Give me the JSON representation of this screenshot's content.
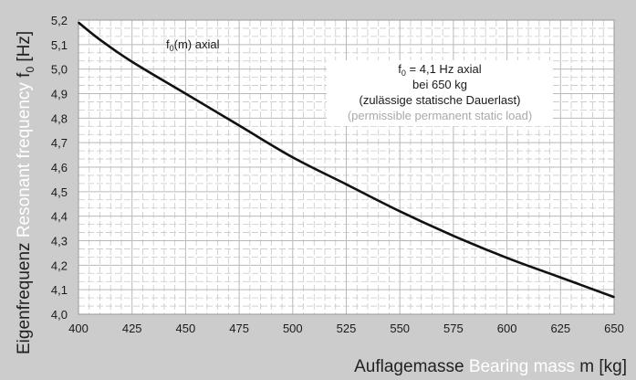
{
  "chart_data": {
    "type": "line",
    "x_label": {
      "de": "Auflagemasse",
      "en": "Bearing mass",
      "symbol": "m [kg]"
    },
    "y_label": {
      "de": "Eigenfrequenz",
      "en": "Resonant frequency",
      "symbol": "f",
      "sub": "0",
      "unit": "[Hz]"
    },
    "xlim": [
      400,
      650
    ],
    "ylim": [
      4.0,
      5.2
    ],
    "x_ticks": [
      "400",
      "425",
      "450",
      "475",
      "500",
      "525",
      "550",
      "575",
      "600",
      "625",
      "650"
    ],
    "y_ticks": [
      "4,0",
      "4,1",
      "4,2",
      "4,3",
      "4,4",
      "4,5",
      "4,6",
      "4,7",
      "4,8",
      "4,9",
      "5,0",
      "5,1",
      "5,2"
    ],
    "grid": true,
    "colors": {
      "background": "#cdcccc",
      "plot_area": "#ffffff",
      "grid": "#c8c8c8",
      "curve": "#111111",
      "english_text": "#ffffff",
      "muted_text": "#a9a9a9"
    },
    "series": [
      {
        "label": {
          "main": "f",
          "sub": "0",
          "rest": "(m) axial"
        },
        "x": [
          400,
          410,
          425,
          450,
          475,
          500,
          525,
          550,
          575,
          600,
          625,
          650
        ],
        "y": [
          5.19,
          5.12,
          5.03,
          4.9,
          4.77,
          4.64,
          4.53,
          4.42,
          4.32,
          4.23,
          4.15,
          4.07
        ]
      }
    ],
    "annotation": {
      "line1_main": "f",
      "line1_sub": "0",
      "line1_rest": " = 4,1 Hz axial",
      "line2": "bei 650 kg",
      "line3": "(zulässige statische Dauerlast)",
      "line4": "(permissible permanent static load)"
    }
  }
}
